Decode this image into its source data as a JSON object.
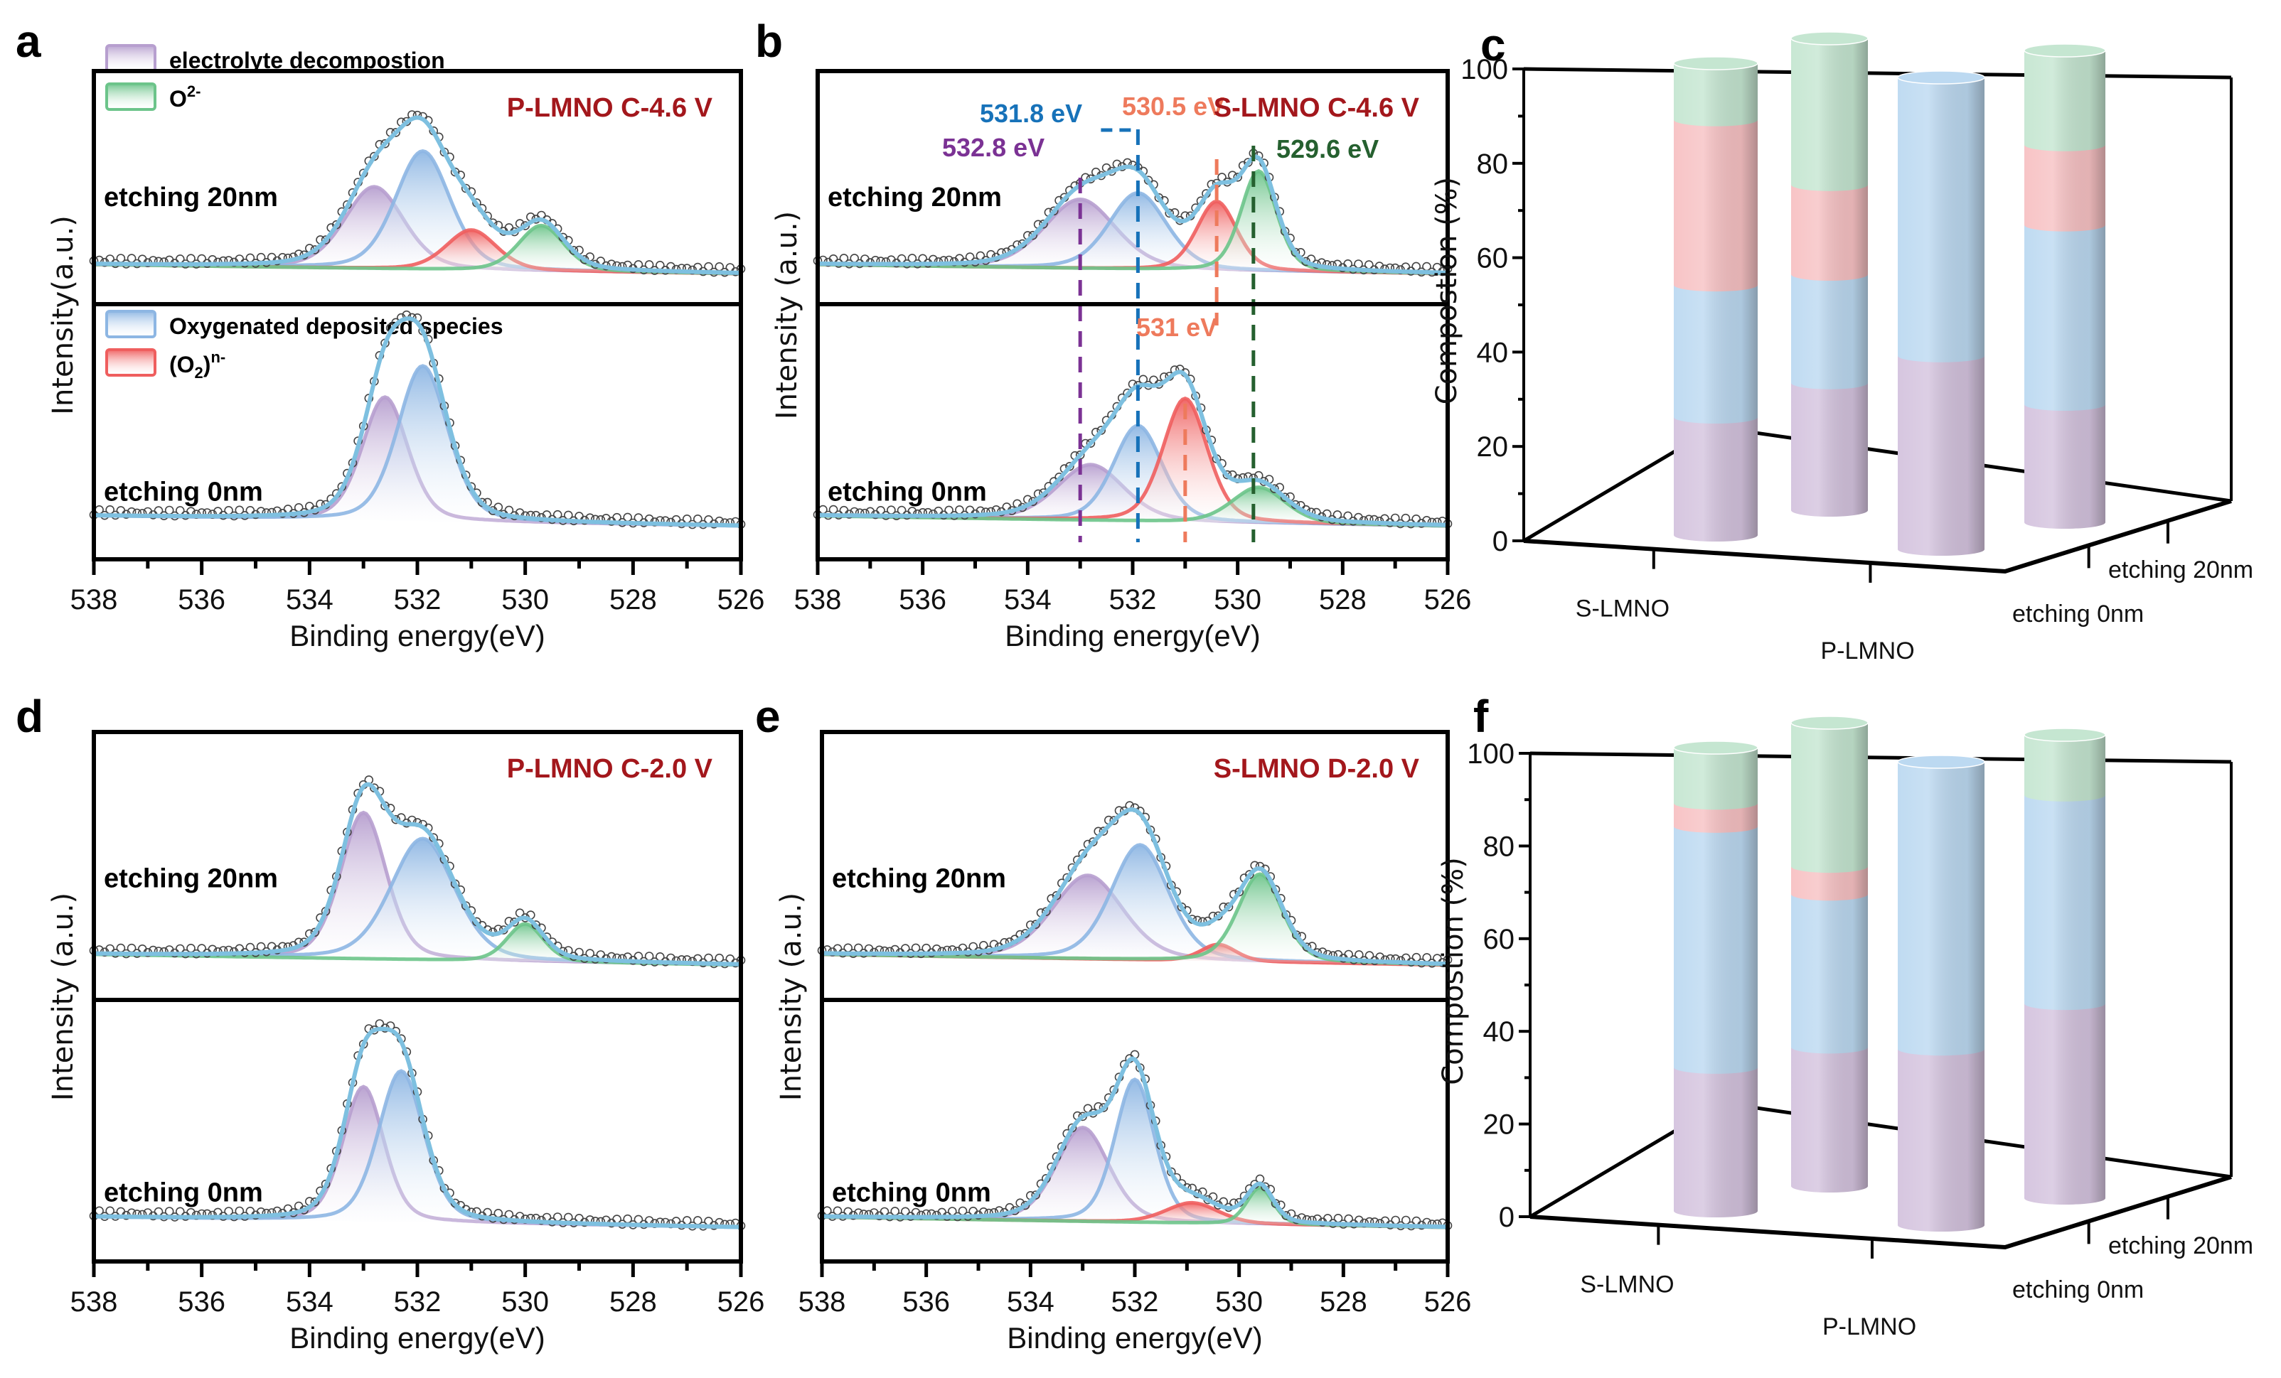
{
  "figure": {
    "colors": {
      "electrolyte": "#b79fcf",
      "oxygenated": "#8db6e3",
      "peroxo": "#ef5e5e",
      "lattice": "#6cc48a",
      "envelope": "#7ec0e0",
      "title_red": "#a3171c",
      "bar_purple": "#d4c3de",
      "bar_blue": "#bcd9f1",
      "bar_red": "#f7c1c3",
      "bar_green": "#c5e6d1",
      "label_purple": "#7b3294",
      "label_blue": "#1772b9",
      "label_orange": "#ee7a5c",
      "label_green": "#25602f"
    },
    "legend": {
      "electrolyte": "electrolyte decompostion",
      "lattice": "O",
      "lattice_sup": "2-",
      "oxygenated": "Oxygenated deposited species",
      "peroxo_prefix": "(O",
      "peroxo_sub": "2",
      "peroxo_suffix": ")",
      "peroxo_sup": "n-"
    }
  },
  "chart_data": [
    {
      "panel": "a",
      "type": "line",
      "title": "P-LMNO C-4.6 V",
      "xlabel": "Binding energy(eV)",
      "ylabel": "Intensity(a.u.)",
      "xlim": [
        538,
        526
      ],
      "xticks": [
        "538",
        "536",
        "534",
        "532",
        "530",
        "528",
        "526"
      ],
      "subplots": [
        {
          "label": "etching 20nm",
          "components": [
            {
              "name": "electrolyte decompostion",
              "center": 532.8,
              "height": 0.45,
              "fwhm": 1.3
            },
            {
              "name": "Oxygenated deposited species",
              "center": 531.9,
              "height": 0.65,
              "fwhm": 1.2
            },
            {
              "name": "(O2)n-",
              "center": 531.0,
              "height": 0.22,
              "fwhm": 1.1
            },
            {
              "name": "O2-",
              "center": 529.7,
              "height": 0.25,
              "fwhm": 1.0
            }
          ]
        },
        {
          "label": "etching 0nm",
          "components": [
            {
              "name": "electrolyte decompostion",
              "center": 532.6,
              "height": 0.62,
              "fwhm": 1.0
            },
            {
              "name": "Oxygenated deposited species",
              "center": 531.9,
              "height": 0.78,
              "fwhm": 1.1
            }
          ]
        }
      ]
    },
    {
      "panel": "b",
      "type": "line",
      "title": "S-LMNO C-4.6 V",
      "xlabel": "Binding energy(eV)",
      "ylabel": "Intensity (a.u.)",
      "xlim": [
        538,
        526
      ],
      "xticks": [
        "538",
        "536",
        "534",
        "532",
        "530",
        "528",
        "526"
      ],
      "annotations": [
        {
          "text": "532.8 eV",
          "x": 533.0,
          "color": "label_purple"
        },
        {
          "text": "531.8 eV",
          "x": 531.9,
          "color": "label_blue"
        },
        {
          "text": "530.5 eV",
          "x": 530.4,
          "color": "label_orange"
        },
        {
          "text": "531 eV",
          "x": 531.0,
          "color": "label_orange"
        },
        {
          "text": "529.6 eV",
          "x": 529.7,
          "color": "label_green"
        }
      ],
      "subplots": [
        {
          "label": "etching 20nm",
          "components": [
            {
              "name": "electrolyte decompostion",
              "center": 533.0,
              "height": 0.38,
              "fwhm": 1.6
            },
            {
              "name": "Oxygenated deposited species",
              "center": 531.9,
              "height": 0.42,
              "fwhm": 1.3
            },
            {
              "name": "(O2)n-",
              "center": 530.4,
              "height": 0.38,
              "fwhm": 0.9
            },
            {
              "name": "O2-",
              "center": 529.6,
              "height": 0.55,
              "fwhm": 0.8
            }
          ]
        },
        {
          "label": "etching 0nm",
          "components": [
            {
              "name": "electrolyte decompostion",
              "center": 532.8,
              "height": 0.28,
              "fwhm": 1.5
            },
            {
              "name": "Oxygenated deposited species",
              "center": 531.9,
              "height": 0.48,
              "fwhm": 1.1
            },
            {
              "name": "(O2)n-",
              "center": 531.0,
              "height": 0.62,
              "fwhm": 1.0
            },
            {
              "name": "O2-",
              "center": 529.6,
              "height": 0.18,
              "fwhm": 1.2
            }
          ]
        }
      ]
    },
    {
      "panel": "c",
      "type": "bar",
      "subtype": "3d-stacked-cylinder",
      "ylabel": "Compostion (%)",
      "ylim": [
        0,
        100
      ],
      "yticks": [
        "0",
        "20",
        "40",
        "60",
        "80",
        "100"
      ],
      "categories": [
        "S-LMNO",
        "P-LMNO"
      ],
      "depth_categories": [
        "etching 0nm",
        "etching 20nm"
      ],
      "bars": [
        {
          "category": "S-LMNO",
          "depth": "etching 0nm",
          "segments": {
            "electrolyte": 25,
            "oxygenated": 28,
            "peroxo": 35,
            "lattice": 12
          }
        },
        {
          "category": "S-LMNO",
          "depth": "etching 20nm",
          "segments": {
            "electrolyte": 27,
            "oxygenated": 23,
            "peroxo": 19,
            "lattice": 31
          }
        },
        {
          "category": "P-LMNO",
          "depth": "etching 0nm",
          "segments": {
            "electrolyte": 41,
            "oxygenated": 59,
            "peroxo": 0,
            "lattice": 0
          }
        },
        {
          "category": "P-LMNO",
          "depth": "etching 20nm",
          "segments": {
            "electrolyte": 25,
            "oxygenated": 38,
            "peroxo": 17,
            "lattice": 20
          }
        }
      ]
    },
    {
      "panel": "d",
      "type": "line",
      "title": "P-LMNO C-2.0 V",
      "xlabel": "Binding energy(eV)",
      "ylabel": "Intensity (a.u.)",
      "xlim": [
        538,
        526
      ],
      "xticks": [
        "538",
        "536",
        "534",
        "532",
        "530",
        "528",
        "526"
      ],
      "subplots": [
        {
          "label": "etching 20nm",
          "components": [
            {
              "name": "electrolyte decompostion",
              "center": 533.0,
              "height": 0.7,
              "fwhm": 1.0
            },
            {
              "name": "Oxygenated deposited species",
              "center": 531.9,
              "height": 0.58,
              "fwhm": 1.4
            },
            {
              "name": "O2-",
              "center": 530.0,
              "height": 0.18,
              "fwhm": 0.8
            }
          ]
        },
        {
          "label": "etching 0nm",
          "components": [
            {
              "name": "electrolyte decompostion",
              "center": 533.0,
              "height": 0.66,
              "fwhm": 0.9
            },
            {
              "name": "Oxygenated deposited species",
              "center": 532.3,
              "height": 0.74,
              "fwhm": 1.0
            }
          ]
        }
      ]
    },
    {
      "panel": "e",
      "type": "line",
      "title": "S-LMNO D-2.0 V",
      "xlabel": "Binding energy(eV)",
      "ylabel": "Intensity (a.u.)",
      "xlim": [
        538,
        526
      ],
      "xticks": [
        "538",
        "536",
        "534",
        "532",
        "530",
        "528",
        "526"
      ],
      "subplots": [
        {
          "label": "etching 20nm",
          "components": [
            {
              "name": "electrolyte decompostion",
              "center": 532.9,
              "height": 0.4,
              "fwhm": 1.6
            },
            {
              "name": "Oxygenated deposited species",
              "center": 531.9,
              "height": 0.55,
              "fwhm": 1.3
            },
            {
              "name": "(O2)n-",
              "center": 530.4,
              "height": 0.08,
              "fwhm": 0.8
            },
            {
              "name": "O2-",
              "center": 529.6,
              "height": 0.42,
              "fwhm": 1.0
            }
          ]
        },
        {
          "label": "etching 0nm",
          "components": [
            {
              "name": "electrolyte decompostion",
              "center": 533.0,
              "height": 0.46,
              "fwhm": 1.2
            },
            {
              "name": "Oxygenated deposited species",
              "center": 532.0,
              "height": 0.7,
              "fwhm": 0.9
            },
            {
              "name": "(O2)n-",
              "center": 530.9,
              "height": 0.1,
              "fwhm": 1.2
            },
            {
              "name": "O2-",
              "center": 529.6,
              "height": 0.18,
              "fwhm": 0.6
            }
          ]
        }
      ]
    },
    {
      "panel": "f",
      "type": "bar",
      "subtype": "3d-stacked-cylinder",
      "ylabel": "Compostion (%)",
      "ylim": [
        0,
        100
      ],
      "yticks": [
        "0",
        "20",
        "40",
        "60",
        "80",
        "100"
      ],
      "categories": [
        "S-LMNO",
        "P-LMNO"
      ],
      "depth_categories": [
        "etching 0nm",
        "etching 20nm"
      ],
      "bars": [
        {
          "category": "S-LMNO",
          "depth": "etching 0nm",
          "segments": {
            "electrolyte": 31,
            "oxygenated": 52,
            "peroxo": 5,
            "lattice": 12
          }
        },
        {
          "category": "S-LMNO",
          "depth": "etching 20nm",
          "segments": {
            "electrolyte": 30,
            "oxygenated": 33,
            "peroxo": 6,
            "lattice": 31
          }
        },
        {
          "category": "P-LMNO",
          "depth": "etching 0nm",
          "segments": {
            "electrolyte": 38,
            "oxygenated": 62,
            "peroxo": 0,
            "lattice": 0
          }
        },
        {
          "category": "P-LMNO",
          "depth": "etching 20nm",
          "segments": {
            "electrolyte": 42,
            "oxygenated": 45,
            "peroxo": 0,
            "lattice": 13
          }
        }
      ]
    }
  ]
}
